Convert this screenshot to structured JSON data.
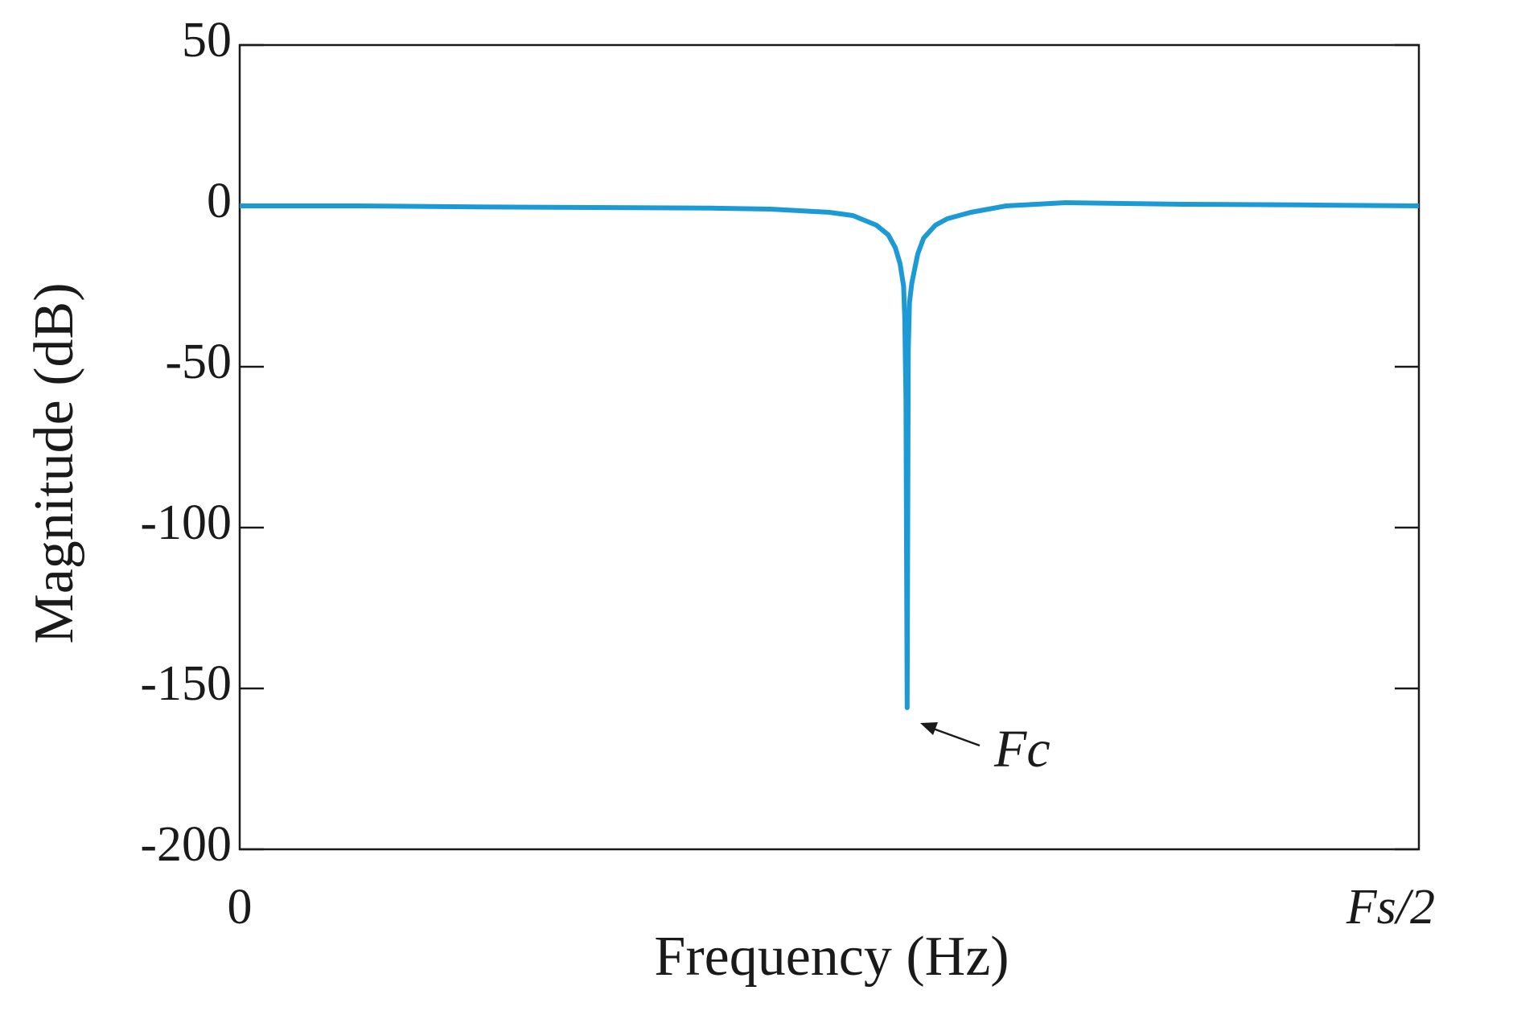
{
  "chart_data": {
    "type": "line",
    "ylabel": "Magnitude (dB)",
    "xlabel": "Frequency (Hz)",
    "annotation": "Fc",
    "xlim": [
      0,
      1
    ],
    "xticks": [
      0,
      {
        "value": 1,
        "label": "Fs/2"
      }
    ],
    "ylim": [
      -200,
      50
    ],
    "yticks": [
      -200,
      -150,
      -100,
      -50,
      0,
      50
    ],
    "series": [
      {
        "color": "#1b9ad6",
        "x": [
          0,
          0.1,
          0.2,
          0.3,
          0.4,
          0.45,
          0.5,
          0.52,
          0.54,
          0.55,
          0.556,
          0.56,
          0.563,
          0.564,
          0.565,
          0.566,
          0.567,
          0.568,
          0.57,
          0.575,
          0.58,
          0.59,
          0.6,
          0.62,
          0.65,
          0.7,
          0.8,
          0.9,
          1
        ],
        "values": [
          0,
          0,
          -0.3,
          -0.5,
          -0.7,
          -1,
          -2,
          -3,
          -6,
          -9,
          -13,
          -18,
          -25,
          -35,
          -60,
          -156,
          -45,
          -30,
          -24,
          -15,
          -10,
          -6,
          -4,
          -2,
          0,
          1,
          0.5,
          0.3,
          0
        ]
      }
    ]
  }
}
